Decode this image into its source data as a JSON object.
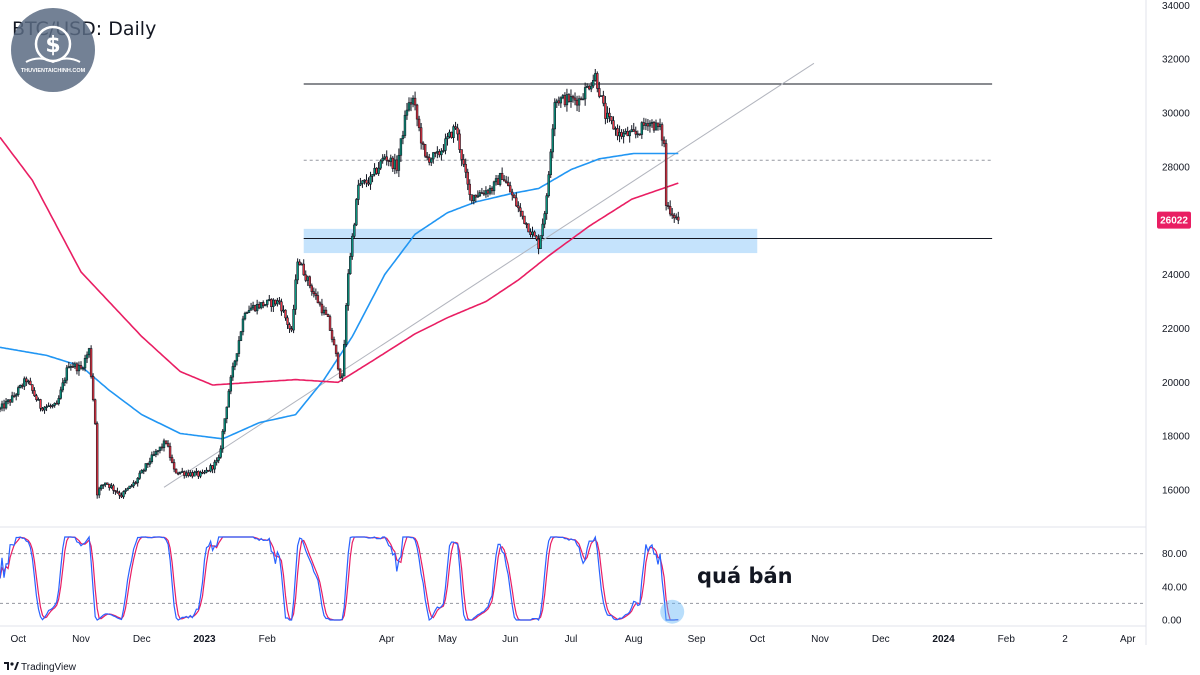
{
  "chart_data": {
    "type": "candlestick",
    "title": "BTC/USD: Daily",
    "brand": "TradingView",
    "logo_text": "THUVIENTAICHINH.COM",
    "annotation": "quá bán",
    "current_price": 26022,
    "current_price_label": "26022",
    "price_axis": {
      "ylim": [
        14700,
        34200
      ],
      "ticks": [
        16000,
        18000,
        20000,
        22000,
        24000,
        26000,
        28000,
        30000,
        32000,
        34000
      ],
      "tick_labels": [
        "16000",
        "18000",
        "20000",
        "22000",
        "24000",
        "26000",
        "28000",
        "30000",
        "32000",
        "34000"
      ]
    },
    "time_axis": {
      "start": "2022-09-22",
      "end": "2024-04-10",
      "labels": [
        {
          "date": "2022-10-01",
          "text": "Oct",
          "bold": false
        },
        {
          "date": "2022-11-01",
          "text": "Nov",
          "bold": false
        },
        {
          "date": "2022-12-01",
          "text": "Dec",
          "bold": false
        },
        {
          "date": "2023-01-01",
          "text": "2023",
          "bold": true
        },
        {
          "date": "2023-02-01",
          "text": "Feb",
          "bold": false
        },
        {
          "date": "2023-04-01",
          "text": "Apr",
          "bold": false
        },
        {
          "date": "2023-05-01",
          "text": "May",
          "bold": false
        },
        {
          "date": "2023-06-01",
          "text": "Jun",
          "bold": false
        },
        {
          "date": "2023-07-01",
          "text": "Jul",
          "bold": false
        },
        {
          "date": "2023-08-01",
          "text": "Aug",
          "bold": false
        },
        {
          "date": "2023-09-01",
          "text": "Sep",
          "bold": false
        },
        {
          "date": "2023-10-01",
          "text": "Oct",
          "bold": false
        },
        {
          "date": "2023-11-01",
          "text": "Nov",
          "bold": false
        },
        {
          "date": "2023-12-01",
          "text": "Dec",
          "bold": false
        },
        {
          "date": "2024-01-01",
          "text": "2024",
          "bold": true
        },
        {
          "date": "2024-02-01",
          "text": "Feb",
          "bold": false
        },
        {
          "date": "2024-03-01",
          "text": "2",
          "bold": false
        },
        {
          "date": "2024-04-01",
          "text": "Apr",
          "bold": false
        }
      ]
    },
    "price_anchors": [
      [
        "2022-09-22",
        19000
      ],
      [
        "2022-09-28",
        19400
      ],
      [
        "2022-10-05",
        20100
      ],
      [
        "2022-10-12",
        19100
      ],
      [
        "2022-10-20",
        19100
      ],
      [
        "2022-10-26",
        20700
      ],
      [
        "2022-11-01",
        20500
      ],
      [
        "2022-11-05",
        21200
      ],
      [
        "2022-11-08",
        18500
      ],
      [
        "2022-11-09",
        15900
      ],
      [
        "2022-11-13",
        16300
      ],
      [
        "2022-11-21",
        15800
      ],
      [
        "2022-11-28",
        16300
      ],
      [
        "2022-12-05",
        17100
      ],
      [
        "2022-12-13",
        17800
      ],
      [
        "2022-12-17",
        16700
      ],
      [
        "2022-12-31",
        16550
      ],
      [
        "2023-01-08",
        17100
      ],
      [
        "2023-01-13",
        19700
      ],
      [
        "2023-01-21",
        22700
      ],
      [
        "2023-01-30",
        22900
      ],
      [
        "2023-02-07",
        23000
      ],
      [
        "2023-02-13",
        21800
      ],
      [
        "2023-02-16",
        24600
      ],
      [
        "2023-02-24",
        23300
      ],
      [
        "2023-03-03",
        22300
      ],
      [
        "2023-03-09",
        20300
      ],
      [
        "2023-03-10",
        20100
      ],
      [
        "2023-03-13",
        24100
      ],
      [
        "2023-03-18",
        27300
      ],
      [
        "2023-03-24",
        27500
      ],
      [
        "2023-03-31",
        28400
      ],
      [
        "2023-04-06",
        28000
      ],
      [
        "2023-04-11",
        30200
      ],
      [
        "2023-04-14",
        30500
      ],
      [
        "2023-04-20",
        28300
      ],
      [
        "2023-04-26",
        28400
      ],
      [
        "2023-05-05",
        29500
      ],
      [
        "2023-05-12",
        26900
      ],
      [
        "2023-05-23",
        27200
      ],
      [
        "2023-05-28",
        27700
      ],
      [
        "2023-06-06",
        26300
      ],
      [
        "2023-06-15",
        25100
      ],
      [
        "2023-06-19",
        26800
      ],
      [
        "2023-06-21",
        28700
      ],
      [
        "2023-06-23",
        30500
      ],
      [
        "2023-07-05",
        30500
      ],
      [
        "2023-07-13",
        31400
      ],
      [
        "2023-07-18",
        29900
      ],
      [
        "2023-07-25",
        29200
      ],
      [
        "2023-08-02",
        29200
      ],
      [
        "2023-08-08",
        29700
      ],
      [
        "2023-08-14",
        29400
      ],
      [
        "2023-08-16",
        28800
      ],
      [
        "2023-08-17",
        26600
      ],
      [
        "2023-08-23",
        26022
      ]
    ],
    "series": [
      {
        "name": "MA short",
        "color": "#2196f3",
        "points": [
          [
            "2022-09-22",
            21300
          ],
          [
            "2022-10-15",
            21000
          ],
          [
            "2022-11-01",
            20600
          ],
          [
            "2022-11-15",
            19700
          ],
          [
            "2022-12-01",
            18800
          ],
          [
            "2022-12-20",
            18100
          ],
          [
            "2023-01-10",
            17900
          ],
          [
            "2023-01-28",
            18500
          ],
          [
            "2023-02-15",
            18800
          ],
          [
            "2023-03-01",
            20100
          ],
          [
            "2023-03-15",
            21700
          ],
          [
            "2023-03-31",
            24000
          ],
          [
            "2023-04-15",
            25500
          ],
          [
            "2023-05-01",
            26300
          ],
          [
            "2023-05-15",
            26700
          ],
          [
            "2023-06-01",
            27000
          ],
          [
            "2023-06-15",
            27200
          ],
          [
            "2023-07-01",
            27900
          ],
          [
            "2023-07-15",
            28300
          ],
          [
            "2023-08-01",
            28500
          ],
          [
            "2023-08-23",
            28500
          ]
        ]
      },
      {
        "name": "MA long",
        "color": "#e91e63",
        "points": [
          [
            "2022-09-22",
            29100
          ],
          [
            "2022-10-08",
            27500
          ],
          [
            "2022-11-01",
            24100
          ],
          [
            "2022-12-01",
            21700
          ],
          [
            "2022-12-20",
            20400
          ],
          [
            "2023-01-05",
            19900
          ],
          [
            "2023-01-25",
            20000
          ],
          [
            "2023-02-15",
            20100
          ],
          [
            "2023-03-08",
            20000
          ],
          [
            "2023-03-25",
            20800
          ],
          [
            "2023-04-15",
            21800
          ],
          [
            "2023-05-01",
            22400
          ],
          [
            "2023-05-20",
            23000
          ],
          [
            "2023-06-05",
            23800
          ],
          [
            "2023-06-20",
            24700
          ],
          [
            "2023-07-10",
            25800
          ],
          [
            "2023-07-31",
            26800
          ],
          [
            "2023-08-23",
            27400
          ]
        ]
      }
    ],
    "levels": [
      {
        "price": 31080,
        "from": "2023-02-19",
        "to": "2024-01-25",
        "style": "solid"
      },
      {
        "price": 28250,
        "from": "2023-02-19",
        "to": "2024-01-25",
        "style": "dashed"
      },
      {
        "price": 25340,
        "from": "2023-02-19",
        "to": "2024-01-25",
        "style": "solid"
      }
    ],
    "zone": {
      "from": "2023-02-19",
      "to": "2023-10-01",
      "low": 24800,
      "high": 25700,
      "color": "#bbdefb"
    },
    "trendline": {
      "from": [
        "2022-12-12",
        16100
      ],
      "to": [
        "2023-10-29",
        31850
      ],
      "color": "#b2b5be"
    },
    "oscillator": {
      "ylim": [
        0,
        100
      ],
      "levels": [
        20,
        80
      ],
      "tick_values": [
        0,
        40,
        80
      ],
      "tick_labels": [
        "0.00",
        "40.00",
        "80.00"
      ],
      "k_color": "#2962ff",
      "d_color": "#e91e63",
      "highlight": {
        "date": "2023-08-20",
        "value": 10
      }
    },
    "colors": {
      "up": "#089981",
      "down": "#f23645",
      "body": "#131722",
      "axis": "#e0e3eb"
    }
  }
}
